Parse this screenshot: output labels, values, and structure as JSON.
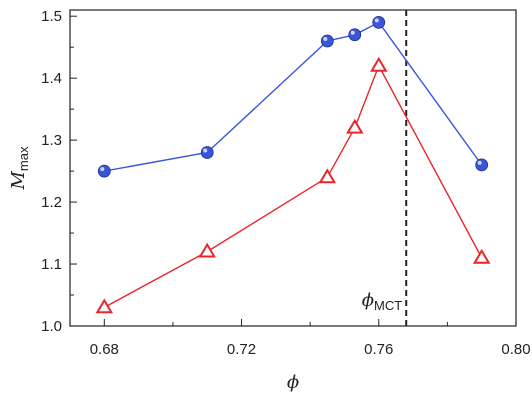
{
  "chart_data": {
    "type": "line",
    "xlabel": "ϕ",
    "ylabel": {
      "main": "M",
      "sub": "max"
    },
    "xlim": [
      0.67,
      0.8
    ],
    "ylim": [
      1.0,
      1.51
    ],
    "x_ticks": [
      "0.68",
      "0.72",
      "0.76",
      "0.80"
    ],
    "y_ticks": [
      "1.0",
      "1.1",
      "1.2",
      "1.3",
      "1.4",
      "1.5"
    ],
    "x_tick_values": [
      0.68,
      0.72,
      0.76,
      0.8
    ],
    "y_tick_values": [
      1.0,
      1.1,
      1.2,
      1.3,
      1.4,
      1.5
    ],
    "grid": false,
    "series": [
      {
        "marker": "circle",
        "color": "#3b55d8",
        "x": [
          0.68,
          0.71,
          0.745,
          0.753,
          0.76,
          0.79
        ],
        "y": [
          1.25,
          1.28,
          1.46,
          1.47,
          1.49,
          1.26
        ]
      },
      {
        "marker": "triangle",
        "color": "#e8262a",
        "x": [
          0.68,
          0.71,
          0.745,
          0.753,
          0.76,
          0.79
        ],
        "y": [
          1.03,
          1.12,
          1.24,
          1.32,
          1.42,
          1.11
        ]
      }
    ],
    "vline": {
      "x": 0.768,
      "style": "dashed",
      "color": "#222222",
      "label": {
        "main": "ϕ",
        "sub": "MCT"
      }
    }
  }
}
